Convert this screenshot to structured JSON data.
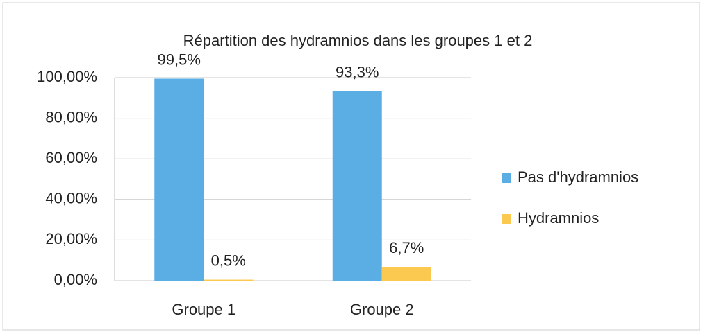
{
  "chart_data": {
    "type": "bar",
    "title": "Répartition des hydramnios dans les groupes 1 et 2",
    "categories": [
      "Groupe 1",
      "Groupe 2"
    ],
    "series": [
      {
        "name": "Pas d'hydramnios",
        "color": "#5aaee3",
        "values": [
          99.5,
          93.3
        ],
        "value_labels": [
          "99,5%",
          "93,3%"
        ]
      },
      {
        "name": "Hydramnios",
        "color": "#fbc950",
        "values": [
          0.5,
          6.7
        ],
        "value_labels": [
          "0,5%",
          "6,7%"
        ]
      }
    ],
    "ylim": [
      0,
      100
    ],
    "yticks": [
      {
        "value": 0,
        "label": "0,00%"
      },
      {
        "value": 20,
        "label": "20,00%"
      },
      {
        "value": 40,
        "label": "40,00%"
      },
      {
        "value": 60,
        "label": "60,00%"
      },
      {
        "value": 80,
        "label": "80,00%"
      },
      {
        "value": 100,
        "label": "100,00%"
      }
    ],
    "grid": true,
    "legend": "right"
  }
}
